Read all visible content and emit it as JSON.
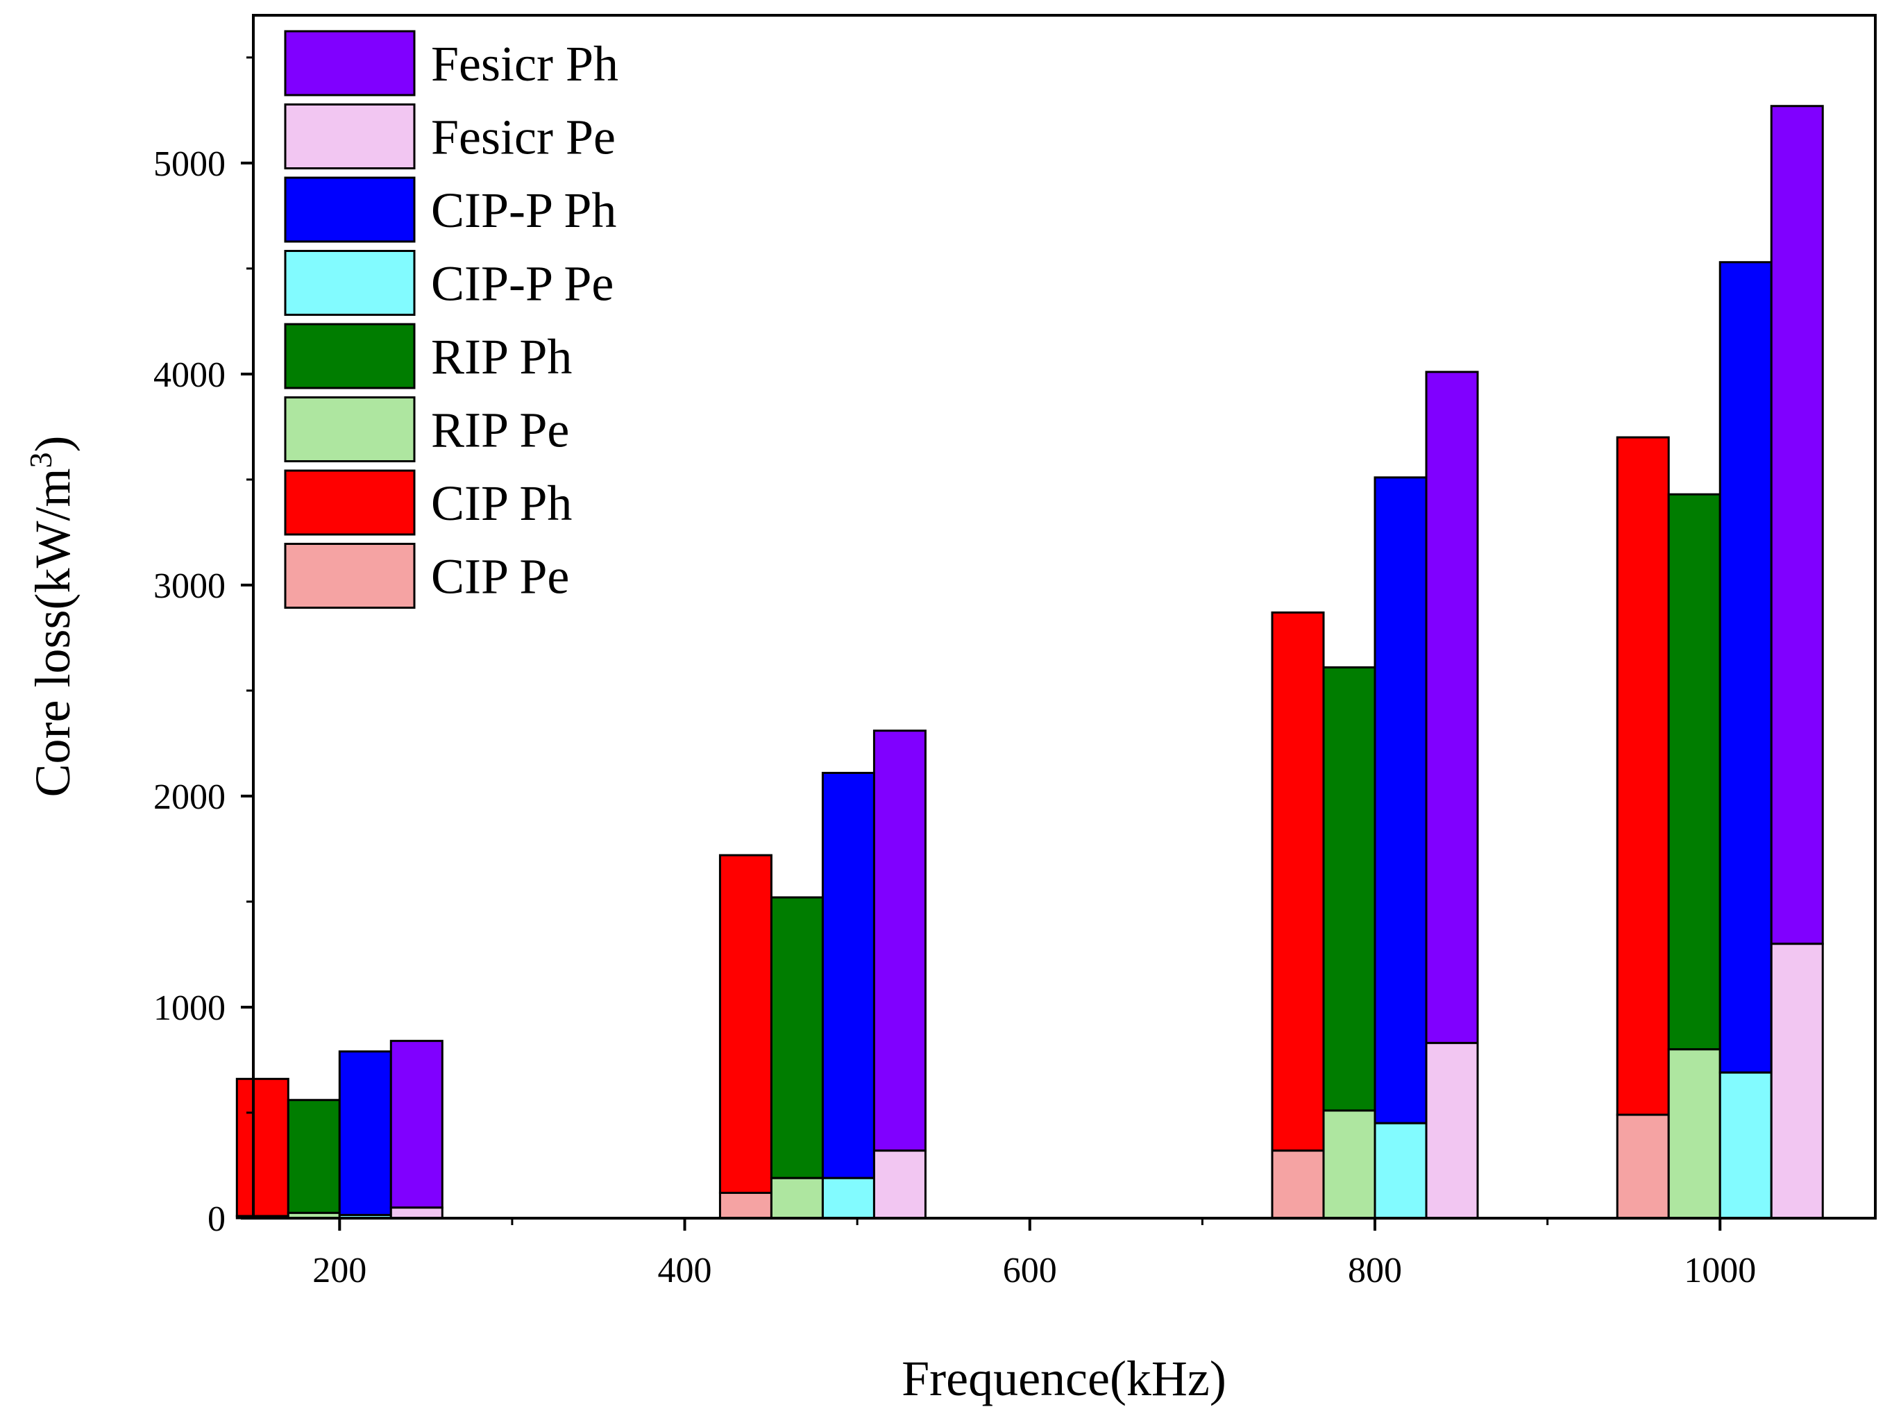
{
  "chart_data": {
    "type": "bar",
    "stacked_components": true,
    "xlabel": "Frequence(kHz)",
    "ylabel_main": "Core loss(kW/m",
    "ylabel_sup": "3",
    "ylabel_close": ")",
    "x_ticks": [
      200,
      400,
      600,
      800,
      1000
    ],
    "y_ticks": [
      0,
      1000,
      2000,
      3000,
      4000,
      5000
    ],
    "xlim": [
      150,
      1090
    ],
    "ylim": [
      0,
      5700
    ],
    "frequencies": [
      200,
      480,
      800,
      1000
    ],
    "materials": [
      "CIP",
      "RIP",
      "CIP-P",
      "Fesicr"
    ],
    "series": [
      {
        "material": "CIP",
        "ph_name": "CIP Ph",
        "pe_name": "CIP Pe",
        "ph_color": "#ff0000",
        "pe_color": "#f5a3a3",
        "total": [
          660,
          1720,
          2870,
          3700
        ],
        "pe": [
          10,
          120,
          320,
          490
        ]
      },
      {
        "material": "RIP",
        "ph_name": "RIP Ph",
        "pe_name": "RIP Pe",
        "ph_color": "#007d00",
        "pe_color": "#aee6a0",
        "total": [
          560,
          1520,
          2610,
          3430
        ],
        "pe": [
          25,
          190,
          510,
          800
        ]
      },
      {
        "material": "CIP-P",
        "ph_name": "CIP-P Ph",
        "pe_name": "CIP-P Pe",
        "ph_color": "#0000ff",
        "pe_color": "#82fbff",
        "total": [
          790,
          2110,
          3510,
          4530
        ],
        "pe": [
          15,
          190,
          450,
          690
        ]
      },
      {
        "material": "Fesicr",
        "ph_name": "Fesicr Ph",
        "pe_name": "Fesicr Pe",
        "ph_color": "#8000ff",
        "pe_color": "#f2c6f2",
        "total": [
          840,
          2310,
          4010,
          5270
        ],
        "pe": [
          50,
          320,
          830,
          1300
        ]
      }
    ],
    "legend": [
      {
        "label": "Fesicr Ph",
        "color": "#8000ff"
      },
      {
        "label": "Fesicr Pe",
        "color": "#f2c6f2"
      },
      {
        "label": "CIP-P Ph",
        "color": "#0000ff"
      },
      {
        "label": "CIP-P Pe",
        "color": "#82fbff"
      },
      {
        "label": "RIP Ph",
        "color": "#007d00"
      },
      {
        "label": "RIP Pe",
        "color": "#aee6a0"
      },
      {
        "label": "CIP Ph",
        "color": "#ff0000"
      },
      {
        "label": "CIP Pe",
        "color": "#f5a3a3"
      }
    ],
    "legend_position": "top-left",
    "grid": false
  }
}
